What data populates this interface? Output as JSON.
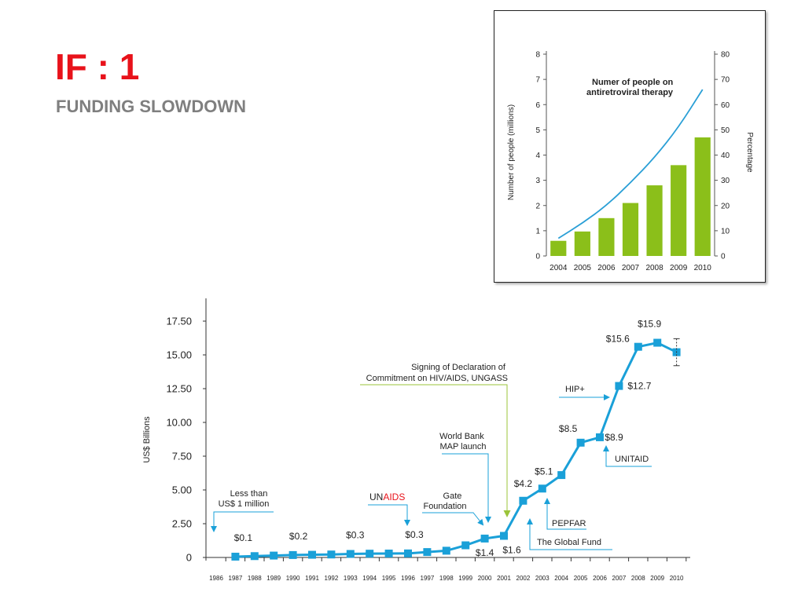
{
  "slide": {
    "title": "IF : 1",
    "subtitle": "FUNDING SLOWDOWN"
  },
  "colors": {
    "title_red": "#e8121a",
    "line_blue": "#1aa0d8",
    "bar_green": "#8bbf1a",
    "inset_line": "#2a9fd6",
    "arrow_green": "#9bc43a"
  },
  "chart_data": [
    {
      "type": "bar",
      "title": "",
      "categories": [
        "2004",
        "2005",
        "2006",
        "2007",
        "2008",
        "2009",
        "2010"
      ],
      "series": [
        {
          "name": "",
          "values": [
            0.6,
            0.97,
            1.5,
            2.1,
            2.8,
            3.6,
            4.7
          ]
        }
      ],
      "line_series": {
        "name": "Numer of people on antiretroviral therapy",
        "axis": "right",
        "values": [
          7,
          13,
          20,
          29,
          39,
          51,
          66
        ]
      },
      "ylabel": "Number of people (millions)",
      "ylabel_right": "Percentage",
      "ylim": [
        0,
        8
      ],
      "ylim_right": [
        0,
        80
      ],
      "yticks": [
        0,
        1,
        2,
        3,
        4,
        5,
        6,
        7,
        8
      ],
      "yticks_right": [
        0,
        10,
        20,
        30,
        40,
        50,
        60,
        70,
        80
      ],
      "grid": false
    },
    {
      "type": "line",
      "title": "",
      "ylabel": "US$ Billions",
      "ylim": [
        0,
        17.5
      ],
      "yticks": [
        "0",
        "2.50",
        "5.00",
        "7.50",
        "10.00",
        "12.50",
        "15.00",
        "17.50"
      ],
      "x_ticks": [
        "1986",
        "1987",
        "1988",
        "1989",
        "1990",
        "1991",
        "1992",
        "1993",
        "1994",
        "1995",
        "1996",
        "1997",
        "1998",
        "1999",
        "2000",
        "2001",
        "2002",
        "2003",
        "2004",
        "2005",
        "2006",
        "2007",
        "2008",
        "2009",
        "2010"
      ],
      "x": [
        "1987",
        "1988",
        "1989",
        "1990",
        "1991",
        "1992",
        "1993",
        "1994",
        "1995",
        "1996",
        "1997",
        "1998",
        "1999",
        "2000",
        "2001",
        "2002",
        "2003",
        "2004",
        "2005",
        "2006",
        "2007",
        "2008",
        "2009",
        "2010"
      ],
      "values": [
        0.06,
        0.1,
        0.14,
        0.18,
        0.2,
        0.22,
        0.26,
        0.28,
        0.29,
        0.3,
        0.4,
        0.5,
        0.9,
        1.4,
        1.6,
        4.2,
        5.1,
        6.1,
        8.5,
        8.9,
        12.7,
        15.6,
        15.9,
        15.2
      ],
      "data_labels": [
        {
          "text": "$0.1",
          "x": "1987"
        },
        {
          "text": "$0.2",
          "x": "1990"
        },
        {
          "text": "$0.3",
          "x": "1993"
        },
        {
          "text": "$0.3",
          "x": "1996"
        },
        {
          "text": "$1.4",
          "x": "2000"
        },
        {
          "text": "$1.6",
          "x": "2001"
        },
        {
          "text": "$4.2",
          "x": "2002"
        },
        {
          "text": "$5.1",
          "x": "2003"
        },
        {
          "text": "$8.5",
          "x": "2005"
        },
        {
          "text": "$8.9",
          "x": "2006"
        },
        {
          "text": "$12.7",
          "x": "2007"
        },
        {
          "text": "$15.6",
          "x": "2008"
        },
        {
          "text": "$15.9",
          "x": "2009"
        }
      ],
      "annotations": {
        "less_than": [
          "Less than",
          "US$ 1 million"
        ],
        "unaids_un": "UN",
        "unaids_aids": "AIDS",
        "gates": [
          "Gate",
          "Foundation"
        ],
        "world_bank": [
          "World Bank",
          "MAP launch"
        ],
        "ungass": [
          "Signing of Declaration of",
          "Commitment on HIV/AIDS, UNGASS"
        ],
        "global_fund": "The Global Fund",
        "pepfar": "PEPFAR",
        "hip": "HIP+",
        "unitaid": "UNITAID"
      },
      "grid": false
    }
  ]
}
